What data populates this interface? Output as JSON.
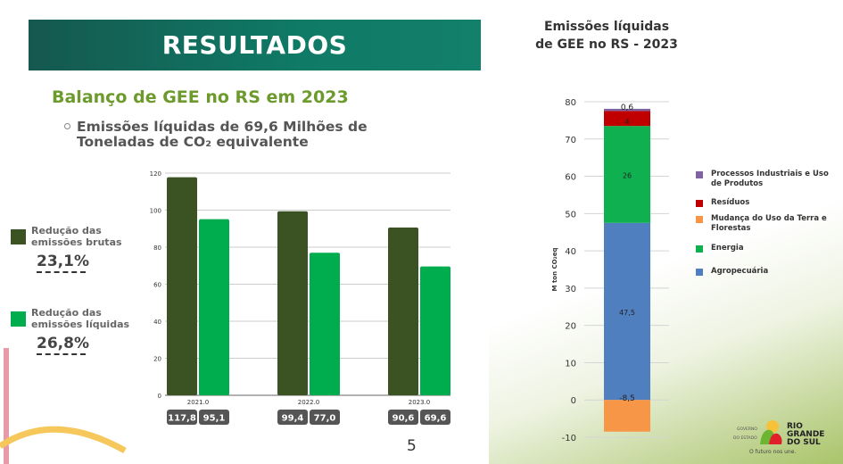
{
  "banner": {
    "title": "RESULTADOS"
  },
  "subtitle": "Balanço de GEE no RS em 2023",
  "bullet": "Emissões líquidas de 69,6 Milhões de Toneladas de CO₂ equivalente",
  "page_number": "5",
  "summary": [
    {
      "label": "Redução das emissões brutas",
      "value": "23,1%",
      "color": "#3b5323"
    },
    {
      "label": "Redução das emissões líquidas",
      "value": "26,8%",
      "color": "#00ad4e"
    }
  ],
  "logo": {
    "text": "GOVERNO DO ESTADO RIO GRANDE DO SUL",
    "slogan": "O futuro nos une."
  },
  "chart_data": [
    {
      "type": "bar",
      "categories": [
        "2021.0",
        "2022.0",
        "2023.0"
      ],
      "series": [
        {
          "values": [
            117.8,
            99.4,
            90.6
          ],
          "labels": [
            "117,8",
            "99,4",
            "90,6"
          ],
          "color": "#3b5323"
        },
        {
          "values": [
            95.1,
            77.0,
            69.6
          ],
          "labels": [
            "95,1",
            "77,0",
            "69,6"
          ],
          "color": "#00ad4e"
        }
      ],
      "ylim": [
        0,
        120
      ],
      "yticks": [
        0,
        20,
        40,
        60,
        80,
        100,
        120
      ],
      "grid": true
    },
    {
      "type": "bar",
      "stacked": true,
      "title": "Emissões líquidas de GEE no RS - 2023",
      "ylabel": "M ton CO₂eq",
      "ylim": [
        -10,
        80
      ],
      "yticks": [
        -10,
        0,
        10,
        20,
        30,
        40,
        50,
        60,
        70,
        80
      ],
      "grid": true,
      "segments": [
        {
          "name": "Agropecuária",
          "value": 47.5,
          "label": "47,5",
          "color": "#4f7fbf"
        },
        {
          "name": "Energia",
          "value": 26,
          "label": "26",
          "color": "#0fb04f"
        },
        {
          "name": "Resíduos",
          "value": 4,
          "label": "4",
          "color": "#c00000"
        },
        {
          "name": "Processos Industriais e Uso de Produtos",
          "value": 0.6,
          "label": "0,6",
          "color": "#8064a2"
        },
        {
          "name": "Mudança do Uso da Terra e Florestas",
          "value": -8.5,
          "label": "-8,5",
          "color": "#f79646"
        }
      ],
      "legend": [
        "Processos Industriais e Uso de Produtos",
        "Resíduos",
        "Mudança do Uso da Terra e Florestas",
        "Energia",
        "Agropecuária"
      ],
      "legend_position": "right"
    }
  ]
}
